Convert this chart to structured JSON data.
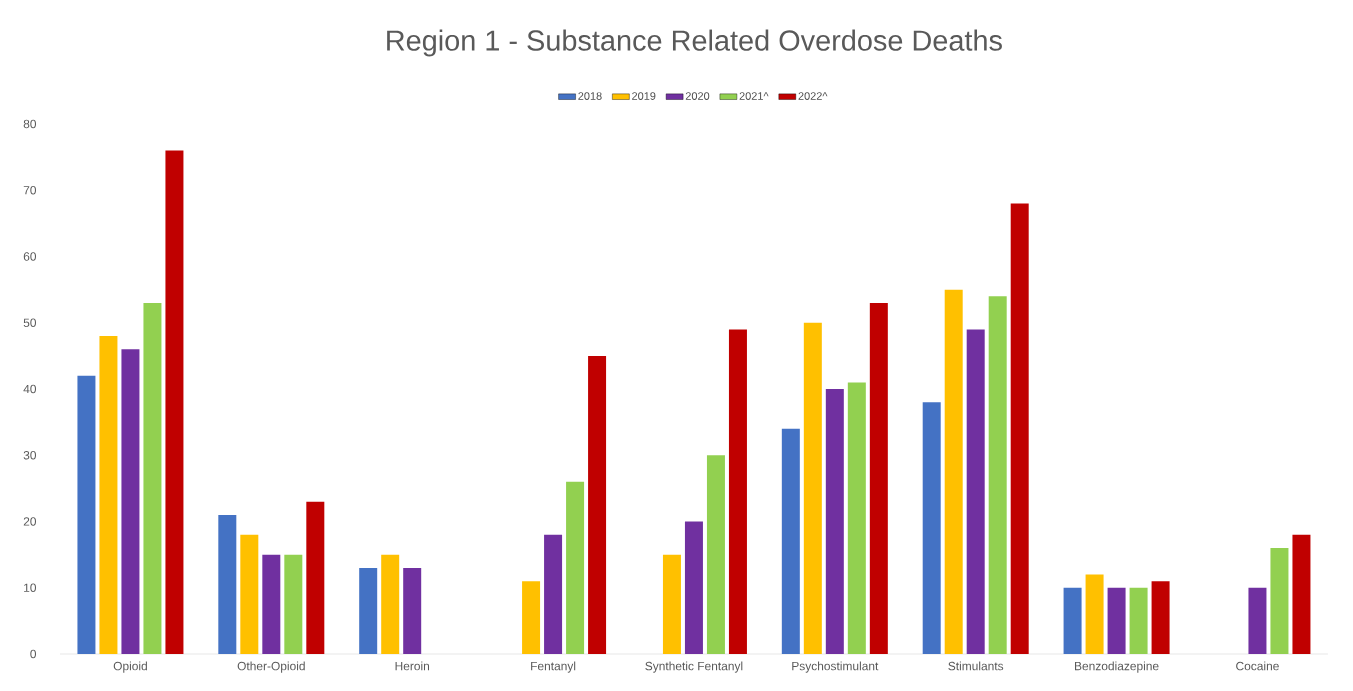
{
  "chart_data": {
    "type": "bar",
    "title": "Region 1 - Substance Related Overdose Deaths",
    "categories": [
      "Opioid",
      "Other-Opioid",
      "Heroin",
      "Fentanyl",
      "Synthetic Fentanyl",
      "Psychostimulant",
      "Stimulants",
      "Benzodiazepine",
      "Cocaine"
    ],
    "series": [
      {
        "name": "2018",
        "color": "#4472c4",
        "values": [
          42,
          21,
          13,
          null,
          null,
          34,
          38,
          10,
          null
        ]
      },
      {
        "name": "2019",
        "color": "#ffc000",
        "values": [
          48,
          18,
          15,
          11,
          15,
          50,
          55,
          12,
          null
        ]
      },
      {
        "name": "2020",
        "color": "#7030a0",
        "values": [
          46,
          15,
          13,
          18,
          20,
          40,
          49,
          10,
          10
        ]
      },
      {
        "name": "2021^",
        "color": "#92d050",
        "values": [
          53,
          15,
          null,
          26,
          30,
          41,
          54,
          10,
          16
        ]
      },
      {
        "name": "2022^",
        "color": "#c00000",
        "values": [
          76,
          23,
          null,
          45,
          49,
          53,
          68,
          11,
          18
        ]
      }
    ],
    "ylim": [
      0,
      80
    ],
    "yticks": [
      0,
      10,
      20,
      30,
      40,
      50,
      60,
      70,
      80
    ],
    "legend": "top"
  }
}
